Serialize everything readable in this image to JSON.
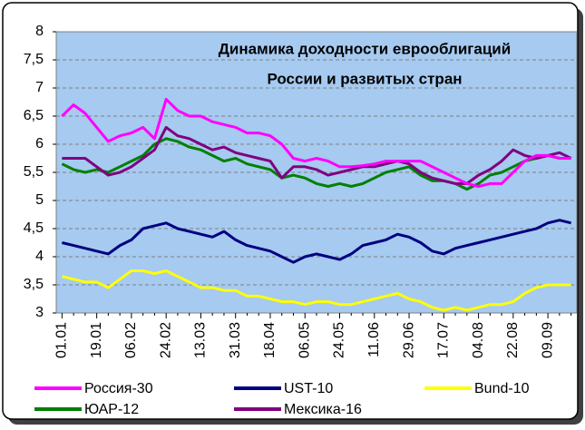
{
  "chart_data": {
    "type": "line",
    "title": "Динамика доходности  еврооблигаций",
    "subtitle": "России и развитых стран",
    "categories": [
      "01.01",
      null,
      null,
      "19.01",
      null,
      null,
      "06.02",
      null,
      null,
      "24.02",
      null,
      null,
      "13.03",
      null,
      null,
      "31.03",
      null,
      null,
      "18.04",
      null,
      null,
      "06.05",
      null,
      null,
      "24.05",
      null,
      null,
      "11.06",
      null,
      null,
      "29.06",
      null,
      null,
      "17.07",
      null,
      null,
      "04.08",
      null,
      null,
      "22.08",
      null,
      null,
      "09.09",
      null,
      null
    ],
    "series": [
      {
        "name": "Россия-30",
        "color": "#ff00ff",
        "values": [
          6.5,
          6.7,
          6.55,
          6.3,
          6.05,
          6.15,
          6.2,
          6.3,
          6.1,
          6.8,
          6.6,
          6.5,
          6.5,
          6.4,
          6.35,
          6.3,
          6.2,
          6.2,
          6.15,
          6.0,
          5.75,
          5.7,
          5.75,
          5.7,
          5.6,
          5.6,
          5.62,
          5.65,
          5.7,
          5.7,
          5.7,
          5.7,
          5.6,
          5.5,
          5.4,
          5.3,
          5.25,
          5.3,
          5.3,
          5.5,
          5.7,
          5.8,
          5.8,
          5.75,
          5.75
        ]
      },
      {
        "name": "UST-10",
        "color": "#000080",
        "values": [
          4.25,
          4.2,
          4.15,
          4.1,
          4.05,
          4.2,
          4.3,
          4.5,
          4.55,
          4.6,
          4.5,
          4.45,
          4.4,
          4.35,
          4.45,
          4.3,
          4.2,
          4.15,
          4.1,
          4.0,
          3.9,
          4.0,
          4.05,
          4.0,
          3.95,
          4.05,
          4.2,
          4.25,
          4.3,
          4.4,
          4.35,
          4.25,
          4.1,
          4.05,
          4.15,
          4.2,
          4.25,
          4.3,
          4.35,
          4.4,
          4.45,
          4.5,
          4.6,
          4.65,
          4.6
        ]
      },
      {
        "name": "Bund-10",
        "color": "#ffff00",
        "values": [
          3.65,
          3.6,
          3.55,
          3.55,
          3.45,
          3.6,
          3.75,
          3.75,
          3.7,
          3.75,
          3.65,
          3.55,
          3.45,
          3.45,
          3.4,
          3.4,
          3.3,
          3.3,
          3.25,
          3.2,
          3.2,
          3.15,
          3.2,
          3.2,
          3.15,
          3.15,
          3.2,
          3.25,
          3.3,
          3.35,
          3.25,
          3.2,
          3.1,
          3.05,
          3.1,
          3.05,
          3.1,
          3.15,
          3.15,
          3.2,
          3.35,
          3.45,
          3.5,
          3.5,
          3.5
        ]
      },
      {
        "name": "ЮАР-12",
        "color": "#008000",
        "values": [
          5.65,
          5.55,
          5.5,
          5.55,
          5.5,
          5.6,
          5.7,
          5.8,
          6.0,
          6.1,
          6.05,
          5.95,
          5.9,
          5.8,
          5.7,
          5.75,
          5.65,
          5.6,
          5.55,
          5.4,
          5.45,
          5.4,
          5.3,
          5.25,
          5.3,
          5.25,
          5.3,
          5.4,
          5.5,
          5.55,
          5.6,
          5.45,
          5.35,
          5.35,
          5.3,
          5.2,
          5.3,
          5.45,
          5.5,
          5.6,
          5.7,
          5.75,
          5.8,
          5.75,
          5.75
        ]
      },
      {
        "name": "Мексика-16",
        "color": "#800080",
        "values": [
          5.75,
          5.75,
          5.75,
          5.6,
          5.45,
          5.5,
          5.6,
          5.75,
          5.9,
          6.3,
          6.15,
          6.1,
          6.0,
          5.9,
          5.95,
          5.85,
          5.8,
          5.75,
          5.7,
          5.4,
          5.6,
          5.6,
          5.55,
          5.45,
          5.5,
          5.55,
          5.6,
          5.6,
          5.65,
          5.7,
          5.65,
          5.5,
          5.4,
          5.35,
          5.3,
          5.3,
          5.45,
          5.55,
          5.7,
          5.9,
          5.8,
          5.75,
          5.8,
          5.85,
          5.75
        ]
      }
    ],
    "ylim": [
      3,
      8
    ],
    "yticks": [
      3,
      {
        "value": 3.5,
        "label": "3,5"
      },
      4,
      {
        "value": 4.5,
        "label": "4,5"
      },
      5,
      {
        "value": 5.5,
        "label": "5,5"
      },
      6,
      {
        "value": 6.5,
        "label": "6,5"
      },
      7,
      {
        "value": 7.5,
        "label": "7,5"
      },
      8
    ],
    "grid": true
  }
}
